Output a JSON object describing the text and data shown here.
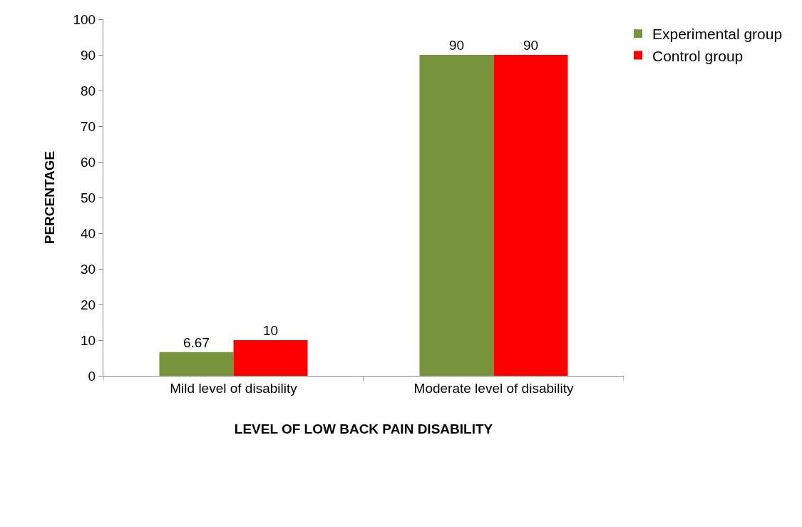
{
  "chart_data": {
    "type": "bar",
    "xlabel": "LEVEL OF LOW BACK PAIN DISABILITY",
    "ylabel": "PERCENTAGE",
    "categories": [
      "Mild level of disability",
      "Moderate level of disability"
    ],
    "series": [
      {
        "name": "Experimental group",
        "color": "#77933c",
        "values": [
          6.67,
          90
        ]
      },
      {
        "name": "Control group",
        "color": "#ff0000",
        "values": [
          10,
          90
        ]
      }
    ],
    "ylim": [
      0,
      100
    ],
    "yticks": [
      0,
      10,
      20,
      30,
      40,
      50,
      60,
      70,
      80,
      90,
      100
    ],
    "grid": false,
    "legend": "top right",
    "data_labels": true
  }
}
